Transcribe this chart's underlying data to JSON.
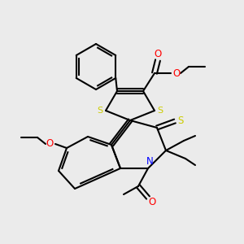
{
  "background_color": "#ebebeb",
  "bond_color": "#000000",
  "atom_colors": {
    "O": "#ff0000",
    "S": "#cccc00",
    "N": "#0000ff",
    "C": "#000000"
  },
  "figsize": [
    3.0,
    3.0
  ],
  "dpi": 100
}
